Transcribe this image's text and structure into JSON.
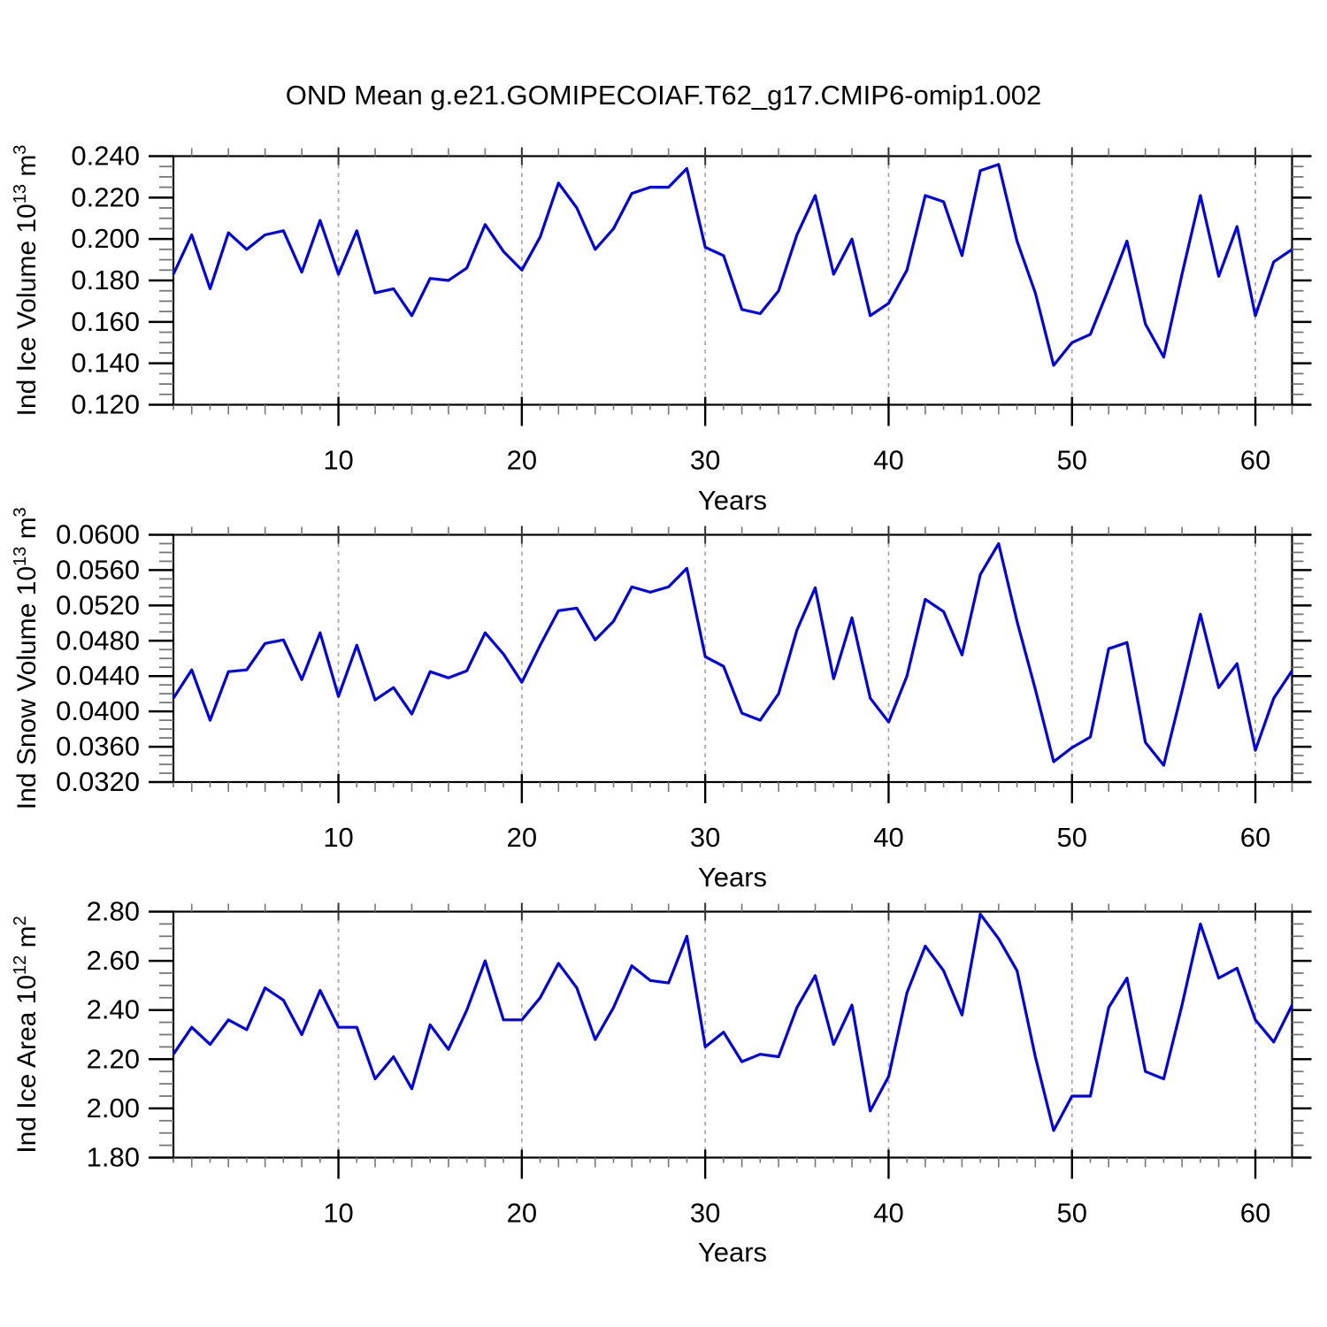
{
  "title": "OND Mean g.e21.GOMIPECOIAF.T62_g17.CMIP6-omip1.002",
  "x_axis": {
    "label": "Years",
    "ticks": [
      10,
      20,
      30,
      40,
      50,
      60
    ],
    "min": 1,
    "max": 62,
    "minor_step": 1
  },
  "colors": {
    "line": "#0000f0",
    "grid": "#a9a9a9",
    "axis": "#000000",
    "minor_tick": "#777777"
  },
  "chart_data": [
    {
      "type": "line",
      "name": "ind-ice-volume",
      "ylabel": "Ind Ice Volume 10^13 m^3",
      "ylim": [
        0.12,
        0.24
      ],
      "yticks": [
        "0.120",
        "0.140",
        "0.160",
        "0.180",
        "0.200",
        "0.220",
        "0.240"
      ],
      "yminor": 0.005,
      "xlabel": "Years",
      "x": "years 1-62, one point per year",
      "values": [
        0.183,
        0.202,
        0.176,
        0.203,
        0.195,
        0.202,
        0.204,
        0.184,
        0.209,
        0.183,
        0.204,
        0.174,
        0.176,
        0.163,
        0.181,
        0.18,
        0.186,
        0.207,
        0.194,
        0.185,
        0.201,
        0.227,
        0.215,
        0.195,
        0.205,
        0.222,
        0.225,
        0.225,
        0.234,
        0.196,
        0.192,
        0.166,
        0.164,
        0.175,
        0.202,
        0.221,
        0.183,
        0.2,
        0.163,
        0.169,
        0.185,
        0.221,
        0.218,
        0.192,
        0.233,
        0.236,
        0.199,
        0.174,
        0.139,
        0.15,
        0.154,
        0.176,
        0.199,
        0.159,
        0.143,
        0.183,
        0.221,
        0.182,
        0.206,
        0.163,
        0.189,
        0.195
      ]
    },
    {
      "type": "line",
      "name": "ind-snow-volume",
      "ylabel": "Ind Snow Volume 10^13 m^3",
      "ylim": [
        0.032,
        0.06
      ],
      "yticks": [
        "0.0320",
        "0.0360",
        "0.0400",
        "0.0440",
        "0.0480",
        "0.0520",
        "0.0560",
        "0.0600"
      ],
      "yminor": 0.001,
      "xlabel": "Years",
      "x": "years 1-62, one point per year",
      "values": [
        0.0415,
        0.0447,
        0.039,
        0.0445,
        0.0447,
        0.0477,
        0.0481,
        0.0436,
        0.0489,
        0.0417,
        0.0475,
        0.0413,
        0.0427,
        0.0397,
        0.0445,
        0.0438,
        0.0446,
        0.0489,
        0.0465,
        0.0433,
        0.0475,
        0.0514,
        0.0517,
        0.0481,
        0.0502,
        0.0541,
        0.0535,
        0.0541,
        0.0562,
        0.0462,
        0.0451,
        0.0398,
        0.039,
        0.042,
        0.0492,
        0.054,
        0.0437,
        0.0506,
        0.0415,
        0.0388,
        0.044,
        0.0527,
        0.0513,
        0.0464,
        0.0555,
        0.059,
        0.0502,
        0.0425,
        0.0343,
        0.0359,
        0.0371,
        0.0471,
        0.0478,
        0.0365,
        0.0339,
        0.0423,
        0.051,
        0.0427,
        0.0454,
        0.0356,
        0.0415,
        0.0446
      ]
    },
    {
      "type": "line",
      "name": "ind-ice-area",
      "ylabel": "Ind Ice Area 10^12 m^2",
      "ylim": [
        1.8,
        2.8
      ],
      "yticks": [
        "1.80",
        "2.00",
        "2.20",
        "2.40",
        "2.60",
        "2.80"
      ],
      "yminor": 0.05,
      "xlabel": "Years",
      "x": "years 1-62, one point per year",
      "values": [
        2.22,
        2.33,
        2.26,
        2.36,
        2.32,
        2.49,
        2.44,
        2.3,
        2.48,
        2.33,
        2.33,
        2.12,
        2.21,
        2.08,
        2.34,
        2.24,
        2.4,
        2.6,
        2.36,
        2.36,
        2.45,
        2.59,
        2.49,
        2.28,
        2.41,
        2.58,
        2.52,
        2.51,
        2.7,
        2.25,
        2.31,
        2.19,
        2.22,
        2.21,
        2.41,
        2.54,
        2.26,
        2.42,
        1.99,
        2.13,
        2.47,
        2.66,
        2.56,
        2.38,
        2.79,
        2.69,
        2.56,
        2.21,
        1.91,
        2.05,
        2.05,
        2.41,
        2.53,
        2.15,
        2.12,
        2.42,
        2.75,
        2.53,
        2.57,
        2.36,
        2.27,
        2.42
      ]
    }
  ]
}
